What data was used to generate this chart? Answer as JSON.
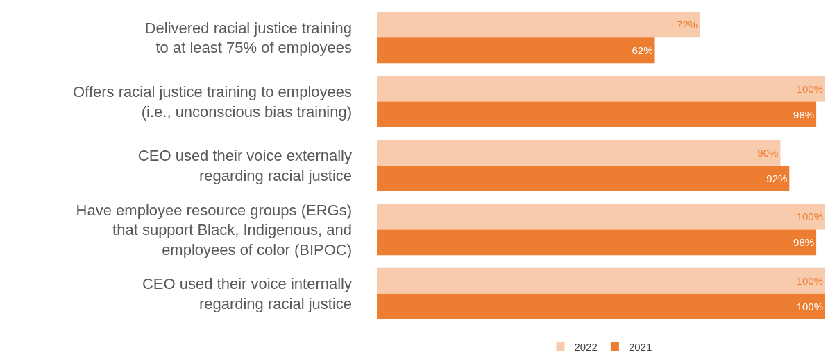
{
  "chart_data": {
    "type": "bar",
    "orientation": "horizontal",
    "legend": "bottom",
    "xlim": [
      0,
      100
    ],
    "categories": [
      "Delivered racial justice training to at least 75% of employees",
      "Offers racial justice training to employees (i.e., unconscious bias training)",
      "CEO used their voice externally regarding racial justice",
      "Have employee resource groups (ERGs) that support Black, Indigenous, and employees of color (BIPOC)",
      "CEO used their voice internally regarding racial justice"
    ],
    "series": [
      {
        "name": "2022",
        "color": "#f8cbad",
        "values": [
          72,
          100,
          90,
          100,
          100
        ],
        "value_labels": [
          "72%",
          "100%",
          "90%",
          "100%",
          "100%"
        ]
      },
      {
        "name": "2021",
        "color": "#ed7d31",
        "values": [
          62,
          98,
          92,
          98,
          100
        ],
        "value_labels": [
          "62%",
          "98%",
          "92%",
          "98%",
          "100%"
        ]
      }
    ]
  }
}
